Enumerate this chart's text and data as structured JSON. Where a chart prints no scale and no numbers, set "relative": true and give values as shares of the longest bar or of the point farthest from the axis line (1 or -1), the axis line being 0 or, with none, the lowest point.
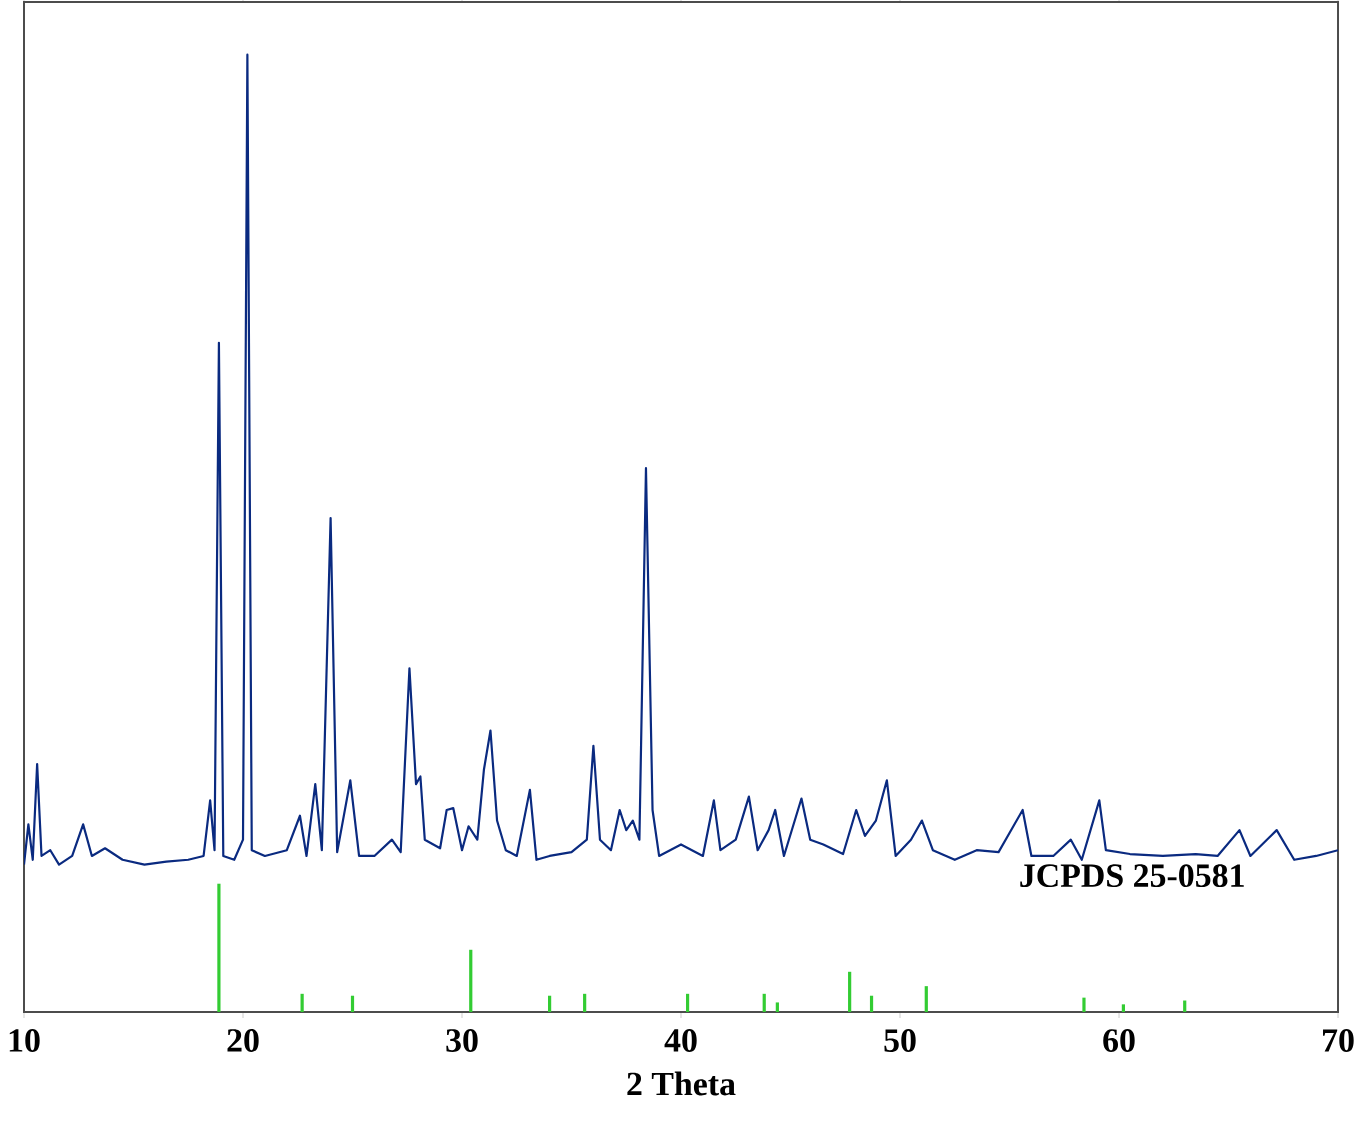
{
  "chart_data": {
    "type": "line",
    "xlabel": "2 Theta",
    "relative": true,
    "xlim": [
      10,
      70
    ],
    "xticks": [
      10,
      20,
      30,
      40,
      50,
      60,
      70
    ],
    "annotations": [
      "JCPDS 25-0581"
    ],
    "series": [
      {
        "color": "#0a2a80",
        "x": [
          10.0,
          10.2,
          10.4,
          10.6,
          10.8,
          11.2,
          11.6,
          12.2,
          12.7,
          13.1,
          13.7,
          14.5,
          15.5,
          16.5,
          17.5,
          18.2,
          18.5,
          18.7,
          18.9,
          19.1,
          19.6,
          20.0,
          20.2,
          20.4,
          21.0,
          22.0,
          22.6,
          22.9,
          23.3,
          23.6,
          24.0,
          24.3,
          24.9,
          25.3,
          26.0,
          26.8,
          27.2,
          27.6,
          27.9,
          28.1,
          28.3,
          29.0,
          29.3,
          29.6,
          30.0,
          30.3,
          30.7,
          31.0,
          31.3,
          31.6,
          32.0,
          32.5,
          33.1,
          33.4,
          34.0,
          35.0,
          35.7,
          36.0,
          36.3,
          36.8,
          37.2,
          37.5,
          37.8,
          38.1,
          38.4,
          38.7,
          39.0,
          40.0,
          41.0,
          41.5,
          41.8,
          42.5,
          43.1,
          43.5,
          44.0,
          44.3,
          44.7,
          45.5,
          45.9,
          46.5,
          47.4,
          48.0,
          48.4,
          48.9,
          49.4,
          49.8,
          50.5,
          51.0,
          51.5,
          52.5,
          53.5,
          54.5,
          55.6,
          56.0,
          57.0,
          57.8,
          58.3,
          59.1,
          59.4,
          60.5,
          62.0,
          63.5,
          64.5,
          65.5,
          66.0,
          67.2,
          68.0,
          69.0,
          70.0
        ],
        "values": [
          0.154,
          0.196,
          0.159,
          0.259,
          0.163,
          0.169,
          0.154,
          0.163,
          0.196,
          0.163,
          0.171,
          0.159,
          0.154,
          0.157,
          0.159,
          0.163,
          0.221,
          0.169,
          0.699,
          0.163,
          0.159,
          0.18,
          1.0,
          0.169,
          0.163,
          0.169,
          0.205,
          0.163,
          0.238,
          0.169,
          0.516,
          0.167,
          0.242,
          0.163,
          0.163,
          0.18,
          0.167,
          0.359,
          0.238,
          0.246,
          0.18,
          0.171,
          0.211,
          0.213,
          0.169,
          0.194,
          0.18,
          0.253,
          0.294,
          0.2,
          0.169,
          0.163,
          0.232,
          0.159,
          0.163,
          0.167,
          0.18,
          0.278,
          0.18,
          0.169,
          0.211,
          0.19,
          0.2,
          0.18,
          0.568,
          0.211,
          0.163,
          0.175,
          0.163,
          0.221,
          0.169,
          0.18,
          0.225,
          0.169,
          0.19,
          0.211,
          0.163,
          0.223,
          0.18,
          0.175,
          0.165,
          0.211,
          0.184,
          0.2,
          0.242,
          0.163,
          0.18,
          0.2,
          0.169,
          0.159,
          0.169,
          0.167,
          0.211,
          0.163,
          0.163,
          0.18,
          0.159,
          0.221,
          0.169,
          0.165,
          0.163,
          0.165,
          0.163,
          0.19,
          0.163,
          0.19,
          0.159,
          0.163,
          0.169
        ]
      },
      {
        "type": "bar",
        "color": "#33cc33",
        "x": [
          18.9,
          22.7,
          25.0,
          30.4,
          34.0,
          35.6,
          40.3,
          43.8,
          44.4,
          47.7,
          48.7,
          51.2,
          58.4,
          60.2,
          63.0
        ],
        "values": [
          0.134,
          0.019,
          0.017,
          0.065,
          0.017,
          0.019,
          0.019,
          0.019,
          0.01,
          0.042,
          0.017,
          0.027,
          0.015,
          0.008,
          0.012
        ]
      }
    ]
  }
}
